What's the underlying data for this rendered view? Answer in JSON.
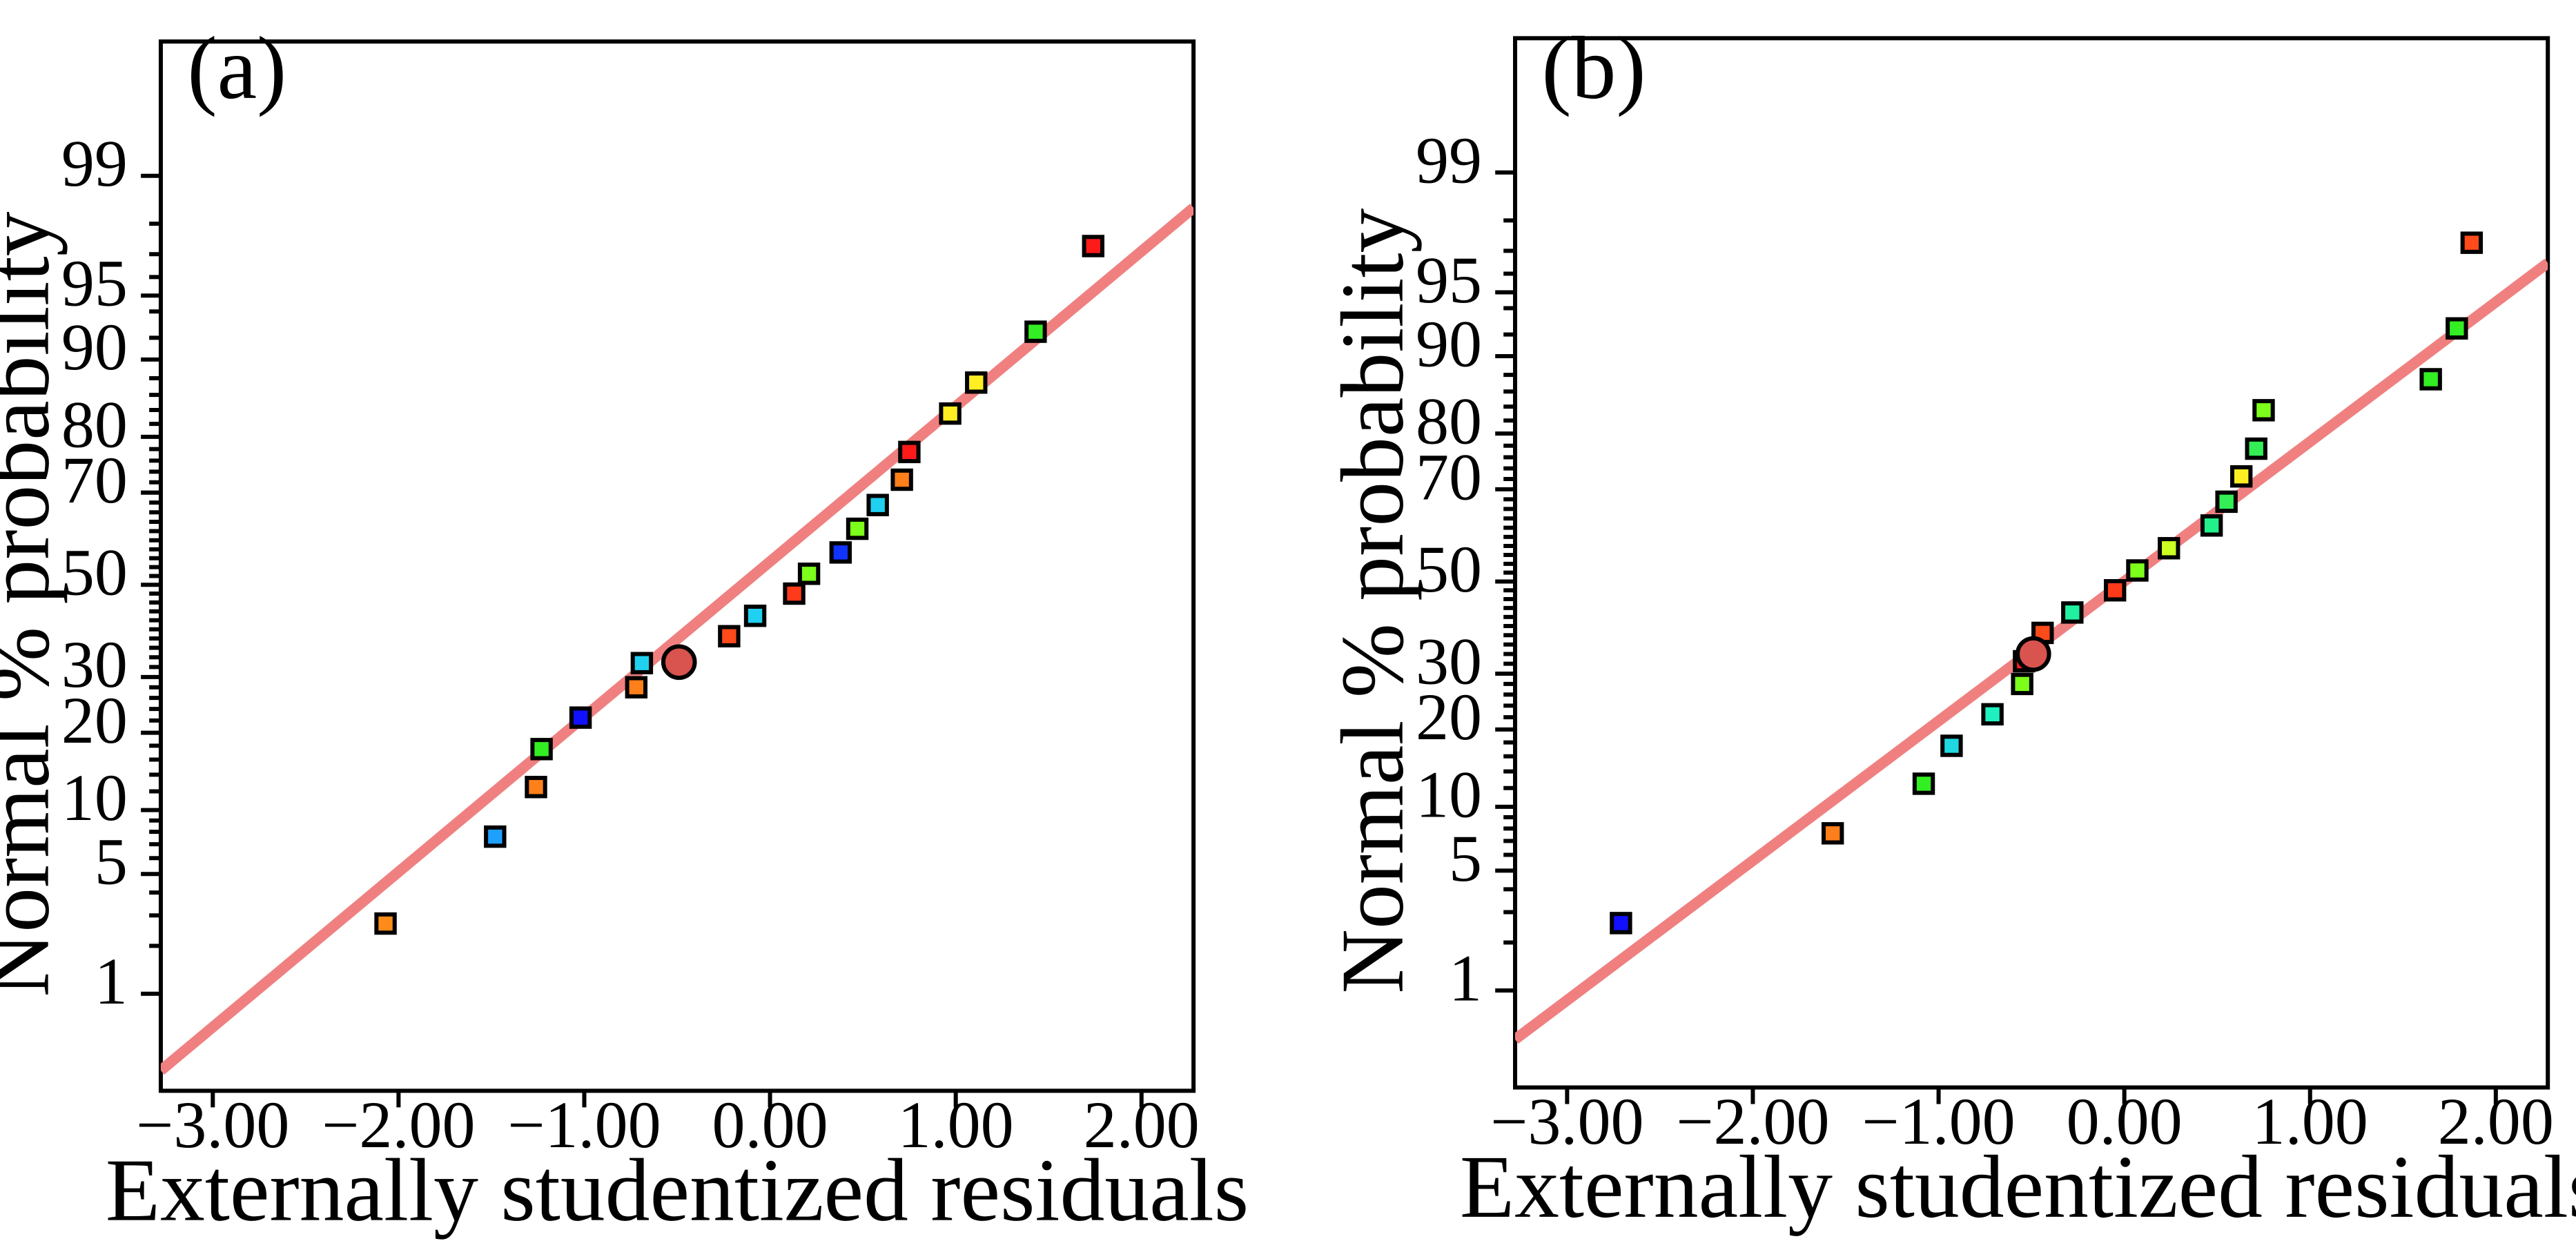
{
  "chart_data": [
    {
      "type": "scatter",
      "panel_label": "(a)",
      "xlabel": "Externally studentized residuals",
      "ylabel": "Normal % probability",
      "xlim": [
        -3.28,
        2.28
      ],
      "x_ticks": [
        -3,
        -2,
        -1,
        0,
        1,
        2
      ],
      "x_tick_labels": [
        "−3.00",
        "−2.00",
        "−1.00",
        "0.00",
        "1.00",
        "2.00"
      ],
      "y_ticks_labeled": [
        1,
        5,
        10,
        20,
        30,
        50,
        70,
        80,
        90,
        95,
        99
      ],
      "y_ticks_minor": [
        2,
        3,
        4,
        6,
        7,
        8,
        9,
        12,
        14,
        16,
        18,
        22,
        24,
        26,
        28,
        32,
        34,
        36,
        38,
        40,
        42,
        44,
        46,
        48,
        52,
        54,
        56,
        58,
        60,
        62,
        64,
        66,
        68,
        72,
        74,
        76,
        78,
        82,
        84,
        86,
        88,
        92,
        94,
        96,
        97,
        98
      ],
      "ylim_percent": [
        0.2,
        99.9
      ],
      "fit_line": {
        "x": [
          -3.28,
          2.28
        ],
        "y": [
          0.2865,
          98.4
        ]
      },
      "special_point": {
        "x": -0.49,
        "y": 33,
        "color": "#d9534f"
      },
      "points": [
        {
          "x": -2.07,
          "y": 2.7,
          "color": "#ff8c1a"
        },
        {
          "x": -1.48,
          "y": 7.6,
          "color": "#1ea0ff"
        },
        {
          "x": -1.26,
          "y": 12.5,
          "color": "#ff7f1a"
        },
        {
          "x": -1.23,
          "y": 17.5,
          "color": "#33ee22"
        },
        {
          "x": -1.02,
          "y": 22.5,
          "color": "#1111ff"
        },
        {
          "x": -0.72,
          "y": 28,
          "color": "#ff7f1a"
        },
        {
          "x": -0.69,
          "y": 32.8,
          "color": "#20d0f0"
        },
        {
          "x": -0.22,
          "y": 38.5,
          "color": "#ff4a1a"
        },
        {
          "x": -0.08,
          "y": 43,
          "color": "#20d0f0"
        },
        {
          "x": 0.13,
          "y": 48,
          "color": "#ff3a1a"
        },
        {
          "x": 0.21,
          "y": 52.5,
          "color": "#7cff1a"
        },
        {
          "x": 0.38,
          "y": 57.3,
          "color": "#1133ff"
        },
        {
          "x": 0.47,
          "y": 62.5,
          "color": "#7cff1a"
        },
        {
          "x": 0.58,
          "y": 67.5,
          "color": "#20d0f0"
        },
        {
          "x": 0.71,
          "y": 72.5,
          "color": "#ff7f1a"
        },
        {
          "x": 0.75,
          "y": 77.5,
          "color": "#ff1a1a"
        },
        {
          "x": 0.97,
          "y": 83.5,
          "color": "#ffee22"
        },
        {
          "x": 1.11,
          "y": 87.5,
          "color": "#ffee22"
        },
        {
          "x": 1.43,
          "y": 92.5,
          "color": "#33ee22"
        },
        {
          "x": 1.74,
          "y": 97.3,
          "color": "#ff1a1a"
        }
      ]
    },
    {
      "type": "scatter",
      "panel_label": "(b)",
      "xlabel": "Externally studentized residuals",
      "ylabel": "Normal % probability",
      "xlim": [
        -3.28,
        2.28
      ],
      "x_ticks": [
        -3,
        -2,
        -1,
        0,
        1,
        2
      ],
      "x_tick_labels": [
        "−3.00",
        "−2.00",
        "−1.00",
        "0.00",
        "1.00",
        "2.00"
      ],
      "y_ticks_labeled": [
        1,
        5,
        10,
        20,
        30,
        50,
        70,
        80,
        90,
        95,
        99
      ],
      "y_ticks_minor": [
        2,
        3,
        4,
        6,
        7,
        8,
        9,
        12,
        14,
        16,
        18,
        22,
        24,
        26,
        28,
        32,
        34,
        36,
        38,
        40,
        42,
        44,
        46,
        48,
        52,
        54,
        56,
        58,
        60,
        62,
        64,
        66,
        68,
        72,
        74,
        76,
        78,
        82,
        84,
        86,
        88,
        92,
        94,
        96,
        97,
        98
      ],
      "ylim_percent": [
        0.2,
        99.9
      ],
      "fit_line": {
        "x": [
          -3.28,
          2.28
        ],
        "y": [
          0.46,
          96.5
        ]
      },
      "special_point": {
        "x": -0.49,
        "y": 34,
        "color": "#d9534f"
      },
      "points": [
        {
          "x": -2.71,
          "y": 2.6,
          "color": "#1111ff"
        },
        {
          "x": -1.57,
          "y": 7.6,
          "color": "#ff7f1a"
        },
        {
          "x": -1.08,
          "y": 12.5,
          "color": "#33ee22"
        },
        {
          "x": -0.93,
          "y": 17.5,
          "color": "#20d8e0"
        },
        {
          "x": -0.71,
          "y": 22.5,
          "color": "#20f0c0"
        },
        {
          "x": -0.55,
          "y": 28,
          "color": "#7cff1a"
        },
        {
          "x": -0.54,
          "y": 32.5,
          "color": "#ff1a1a"
        },
        {
          "x": -0.44,
          "y": 38.5,
          "color": "#ff4a1a"
        },
        {
          "x": -0.28,
          "y": 43,
          "color": "#20f0a0"
        },
        {
          "x": -0.05,
          "y": 48,
          "color": "#ff3a1a"
        },
        {
          "x": 0.07,
          "y": 52.5,
          "color": "#7cff1a"
        },
        {
          "x": 0.24,
          "y": 57.5,
          "color": "#ccff22"
        },
        {
          "x": 0.47,
          "y": 62.5,
          "color": "#22f08a"
        },
        {
          "x": 0.55,
          "y": 67.5,
          "color": "#33ee55"
        },
        {
          "x": 0.63,
          "y": 72.5,
          "color": "#ffee22"
        },
        {
          "x": 0.71,
          "y": 77.5,
          "color": "#33ee55"
        },
        {
          "x": 0.75,
          "y": 83.5,
          "color": "#7cff1a"
        },
        {
          "x": 1.65,
          "y": 87.5,
          "color": "#33ee22"
        },
        {
          "x": 1.79,
          "y": 92.5,
          "color": "#33ee22"
        },
        {
          "x": 1.87,
          "y": 97.3,
          "color": "#ff4a1a"
        }
      ]
    }
  ]
}
